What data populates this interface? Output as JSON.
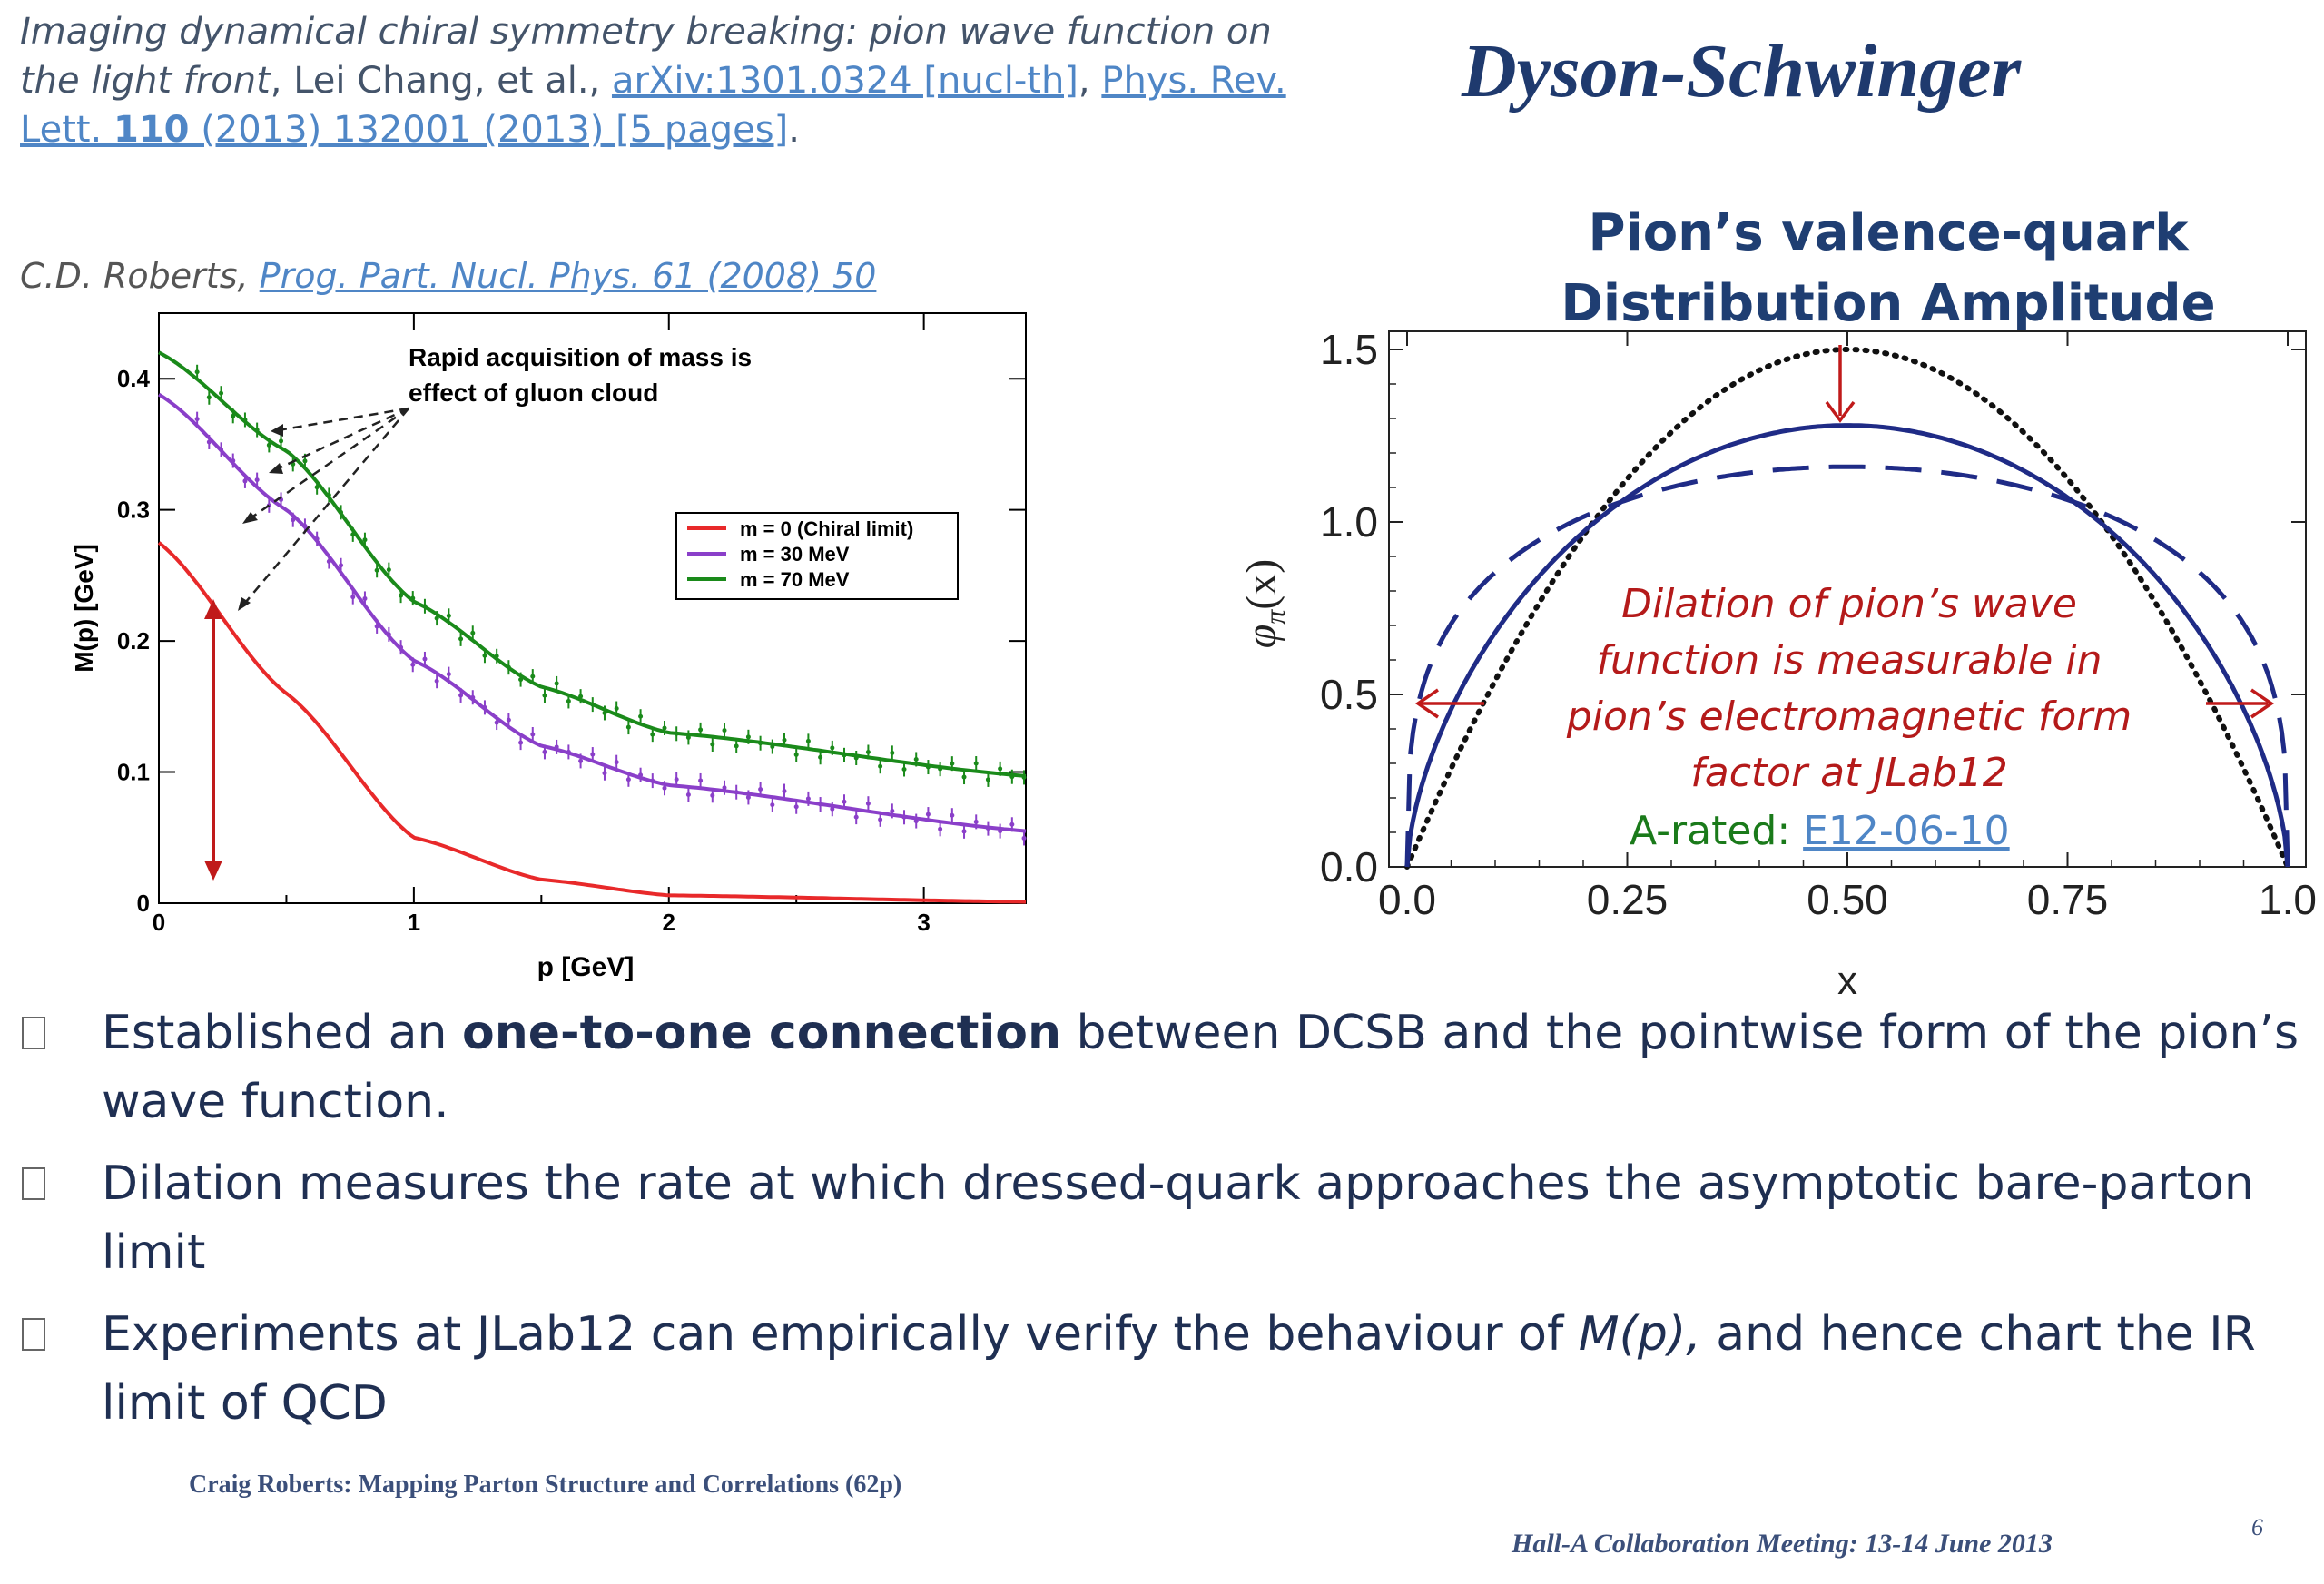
{
  "slide_title": "Dyson-Schwinger",
  "citation": {
    "title_italic": "Imaging dynamical chiral symmetry breaking: pion wave function on the light front",
    "authors": ", Lei Chang, et al., ",
    "arxiv": "arXiv:1301.0324 [nucl-th]",
    "sep": ", ",
    "journal_a": "Phys. Rev. Lett. ",
    "journal_vol": "110",
    "journal_b": " (2013) 132001 (2013) [5 pages]",
    "end": "."
  },
  "roberts_ref": {
    "author": "C.D. Roberts, ",
    "journal": "Prog. Part. Nucl. Phys. 61 (2008) 50"
  },
  "pion_title": {
    "line1": "Pion’s valence-quark",
    "line2": "Distribution Amplitude"
  },
  "left_chart_text": {
    "annotation_line1": "Rapid acquisition of mass is",
    "annotation_line2": "effect of gluon cloud"
  },
  "right_chart_text": {
    "dilation_lines": [
      "Dilation of pion’s wave",
      "function is measurable in",
      "pion’s electromagnetic form",
      "factor at JLab12"
    ],
    "rated_label": "A-rated: ",
    "rated_link": "E12-06-10",
    "ylabel_main": "φ",
    "ylabel_sub": "π",
    "ylabel_arg": "(x)"
  },
  "chart_data": [
    {
      "type": "line",
      "xlabel": "p [GeV]",
      "ylabel": "M(p) [GeV]",
      "xlim": [
        0,
        3.4
      ],
      "ylim": [
        0,
        0.45
      ],
      "xticks": [
        "0",
        "1",
        "2",
        "3"
      ],
      "yticks": [
        "0",
        "0.1",
        "0.2",
        "0.3",
        "0.4"
      ],
      "legend_position": "right",
      "series": [
        {
          "name": "m = 0 (Chiral limit)",
          "color": "#e8292a",
          "x": [
            0,
            0.5,
            1.0,
            1.5,
            2.0,
            3.4
          ],
          "y": [
            0.275,
            0.16,
            0.05,
            0.018,
            0.006,
            0.001
          ]
        },
        {
          "name": "m = 30 MeV",
          "color": "#8a3fc9",
          "x": [
            0,
            0.5,
            1.0,
            1.5,
            2.0,
            3.4
          ],
          "y": [
            0.388,
            0.3,
            0.185,
            0.12,
            0.09,
            0.055
          ]
        },
        {
          "name": "m = 70 MeV",
          "color": "#1a8a1a",
          "x": [
            0,
            0.5,
            1.0,
            1.5,
            2.0,
            3.4
          ],
          "y": [
            0.42,
            0.345,
            0.23,
            0.165,
            0.13,
            0.097
          ]
        }
      ]
    },
    {
      "type": "line",
      "xlabel": "x",
      "ylabel": "φπ(x)",
      "xlim": [
        0,
        1
      ],
      "ylim": [
        0,
        1.5
      ],
      "xticks": [
        "0.0",
        "0.25",
        "0.50",
        "0.75",
        "1.0"
      ],
      "yticks": [
        "0.0",
        "0.5",
        "1.0",
        "1.5"
      ],
      "series": [
        {
          "style": "dotted",
          "color": "#111111",
          "x": [
            0,
            0.25,
            0.5,
            0.75,
            1
          ],
          "y": [
            0,
            1.125,
            1.5,
            1.125,
            0
          ]
        },
        {
          "style": "solid",
          "color": "#1f2b86",
          "x": [
            0,
            0.05,
            0.25,
            0.5,
            0.75,
            0.95,
            1
          ],
          "y": [
            0,
            0.6,
            1.06,
            1.28,
            1.06,
            0.6,
            0
          ]
        },
        {
          "style": "dashed",
          "color": "#1f2b86",
          "x": [
            0,
            0.05,
            0.25,
            0.5,
            0.75,
            0.95,
            1
          ],
          "y": [
            0,
            0.75,
            1.08,
            1.16,
            1.08,
            0.75,
            0
          ]
        }
      ]
    }
  ],
  "bullets": [
    {
      "pre": "Established an ",
      "bold": "one-to-one connection",
      "post": " between DCSB and the pointwise form of the pion’s wave function.",
      "post2": ""
    },
    {
      "pre": "Dilation measures the rate at which dressed-quark approaches the asymptotic bare-parton limit",
      "bold": "",
      "post": "",
      "post2": ""
    },
    {
      "pre": "Experiments at JLab12 can empirically verify the behaviour of ",
      "bold": "M(p),",
      "post": " and hence chart the IR limit of QCD",
      "post2": ""
    }
  ],
  "footer_left": "Craig Roberts: Mapping Parton Structure and Correlations (62p)",
  "footer_right": "Hall-A Collaboration Meeting: 13-14 June 2013",
  "page_number": "6",
  "colors": {
    "title": "#1f3a6e",
    "red_text": "#b41a1a",
    "green_text": "#1a7a1a",
    "link": "#4f86c6"
  }
}
